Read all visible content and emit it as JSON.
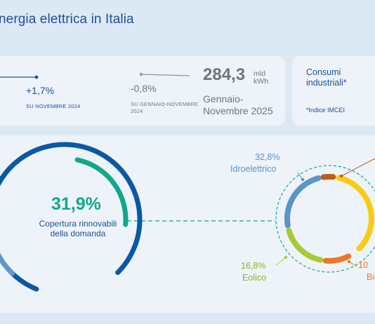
{
  "header": {
    "title": "nergia elettrica in Italia"
  },
  "stats": {
    "monthly_change": "+1,7%",
    "monthly_caption": "SU NOVEMBRE 2024",
    "ytd_change": "-0,8%",
    "ytd_caption": "SU GENNAIO-NOVEMBRE 2024",
    "total_value": "284,3",
    "total_unit": "mld kWh",
    "total_period": "Gennaio-Novembre 2025"
  },
  "industrial": {
    "title": "Consumi industriali*",
    "note": "*Indice IMCEI"
  },
  "renewables": {
    "coverage_value": "31,9%",
    "coverage_label": "Copertura rinnovabili della domanda",
    "coverage_fraction": 0.319,
    "sources": [
      {
        "pct": "32,8%",
        "label": "Idroelettrico",
        "color": "#5a95c9"
      },
      {
        "pct": "16,8%",
        "label": "Eolico",
        "color": "#a9c93a"
      },
      {
        "pct": "10",
        "label": "Bi",
        "color": "#e8782b"
      }
    ]
  },
  "colors": {
    "brand_blue": "#1d4f98",
    "ring_blue": "#0b58a4",
    "teal": "#10a88a",
    "light_blue": "#5a95c9",
    "green": "#a9c93a",
    "orange": "#e8782b",
    "yellow": "#f7cc14",
    "brown": "#c25e10",
    "card_bg": "#edf3f9",
    "page_bg": "#dce9f5"
  }
}
